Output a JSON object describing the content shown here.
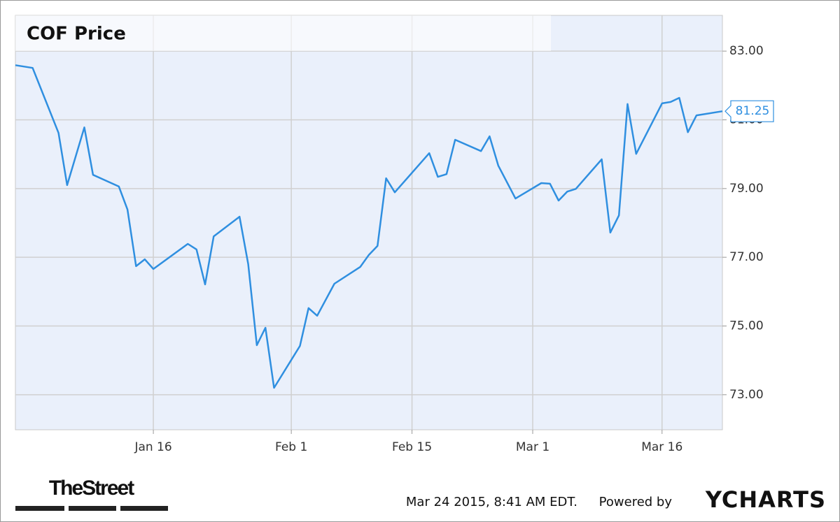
{
  "chart_data": {
    "type": "line",
    "title": "COF Price",
    "x": [
      "Dec 31",
      "Jan 2",
      "Jan 5",
      "Jan 6",
      "Jan 8",
      "Jan 9",
      "Jan 12",
      "Jan 13",
      "Jan 14",
      "Jan 15",
      "Jan 16",
      "Jan 20",
      "Jan 21",
      "Jan 22",
      "Jan 23",
      "Jan 26",
      "Jan 27",
      "Jan 28",
      "Jan 29",
      "Jan 30",
      "Feb 2",
      "Feb 3",
      "Feb 4",
      "Feb 6",
      "Feb 9",
      "Feb 10",
      "Feb 11",
      "Feb 12",
      "Feb 13",
      "Feb 17",
      "Feb 18",
      "Feb 19",
      "Feb 20",
      "Feb 23",
      "Feb 24",
      "Feb 25",
      "Feb 27",
      "Mar 2",
      "Mar 3",
      "Mar 4",
      "Mar 5",
      "Mar 6",
      "Mar 9",
      "Mar 10",
      "Mar 11",
      "Mar 12",
      "Mar 13",
      "Mar 16",
      "Mar 17",
      "Mar 18",
      "Mar 19",
      "Mar 20",
      "Mar 23"
    ],
    "series": [
      {
        "name": "COF",
        "color": "#2f8fe0",
        "values": [
          82.59,
          82.51,
          80.62,
          79.1,
          80.78,
          79.4,
          79.06,
          78.39,
          76.74,
          76.94,
          76.66,
          77.39,
          77.23,
          76.21,
          77.61,
          78.18,
          76.8,
          74.44,
          74.95,
          73.2,
          74.42,
          75.52,
          75.3,
          76.23,
          76.72,
          77.07,
          77.33,
          79.3,
          78.89,
          80.03,
          79.34,
          79.42,
          80.42,
          80.09,
          80.52,
          79.67,
          78.71,
          79.16,
          79.14,
          78.65,
          78.91,
          78.99,
          79.85,
          77.72,
          78.22,
          81.46,
          80.01,
          81.48,
          81.52,
          81.64,
          80.64,
          81.13,
          81.25
        ]
      }
    ],
    "xlim": [
      "Dec 31",
      "Mar 23"
    ],
    "xticks": [
      "Jan 16",
      "Feb 1",
      "Feb 15",
      "Mar 1",
      "Mar 16"
    ],
    "ylim": [
      71.98,
      84.04
    ],
    "yticks": [
      {
        "value": 73,
        "label": "73.00"
      },
      {
        "value": 75,
        "label": "75.00"
      },
      {
        "value": 77,
        "label": "77.00"
      },
      {
        "value": 79,
        "label": "79.00"
      },
      {
        "value": 81,
        "label": "81.00"
      },
      {
        "value": 83,
        "label": "83.00"
      }
    ],
    "grid": true,
    "background": "#eaf0fb"
  },
  "footer": {
    "brand": "TheStreet",
    "timestamp": "Mar 24 2015, 8:41 AM EDT.",
    "powered_by": "Powered by",
    "provider": "YCHARTS"
  }
}
